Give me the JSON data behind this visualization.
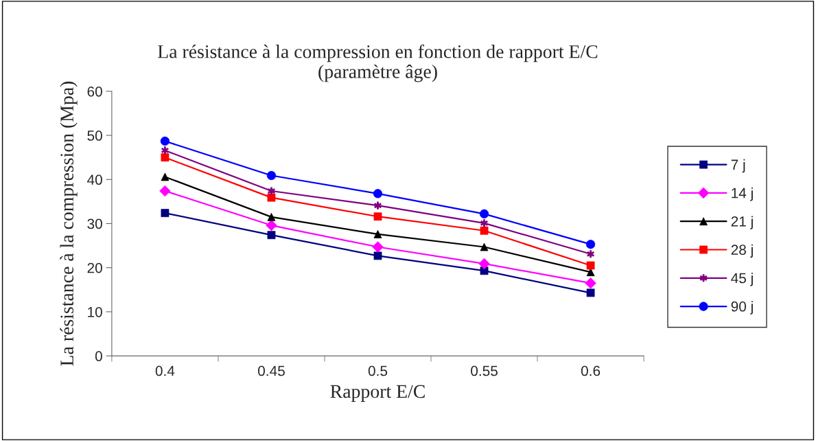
{
  "chart_data": {
    "type": "line",
    "title": "La résistance à la compression en fonction de rapport E/C\n(paramètre âge)",
    "xlabel": "Rapport E/C",
    "ylabel": "La résistance à la compression (Mpa)",
    "categories": [
      "0.4",
      "0.45",
      "0.5",
      "0.55",
      "0.6"
    ],
    "ylim": [
      0,
      60
    ],
    "yticks": [
      0,
      10,
      20,
      30,
      40,
      50,
      60
    ],
    "grid": false,
    "legend": "right",
    "series": [
      {
        "name": "7 j",
        "color": "#000080",
        "marker": "square",
        "values": [
          32.4,
          27.4,
          22.7,
          19.3,
          14.3
        ]
      },
      {
        "name": "14 j",
        "color": "#ff00ff",
        "marker": "diamond",
        "values": [
          37.4,
          29.6,
          24.7,
          20.9,
          16.5
        ]
      },
      {
        "name": "21 j",
        "color": "#000000",
        "marker": "triangle",
        "values": [
          40.6,
          31.5,
          27.6,
          24.7,
          19.0
        ]
      },
      {
        "name": "28 j",
        "color": "#ff0000",
        "marker": "square",
        "values": [
          45.0,
          35.9,
          31.6,
          28.4,
          20.5
        ]
      },
      {
        "name": "45 j",
        "color": "#800080",
        "marker": "cross",
        "values": [
          46.6,
          37.4,
          34.1,
          30.1,
          23.1
        ]
      },
      {
        "name": "90 j",
        "color": "#0000ff",
        "marker": "circle",
        "values": [
          48.7,
          40.9,
          36.8,
          32.2,
          25.3
        ]
      }
    ]
  }
}
